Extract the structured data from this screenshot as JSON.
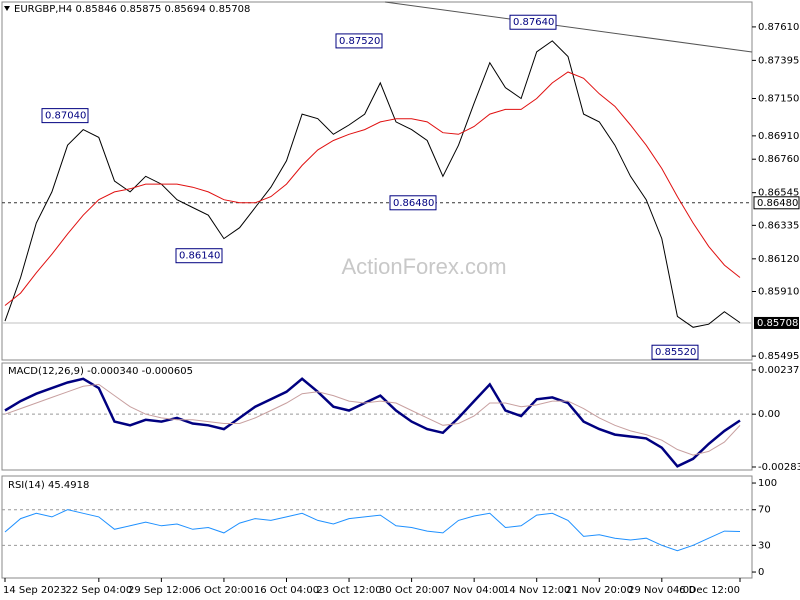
{
  "chart_data": [
    {
      "type": "line",
      "title": "EURGBP,H4  0.85846 0.85875 0.85694 0.85708",
      "watermark": "ActionForex.com",
      "categories": [
        "14 Sep 2023",
        null,
        null,
        null,
        null,
        null,
        "22 Sep 04:00",
        null,
        null,
        null,
        "29 Sep 12:00",
        null,
        null,
        null,
        "6 Oct 20:00",
        null,
        null,
        null,
        "16 Oct 04:00",
        null,
        null,
        null,
        "23 Oct 12:00",
        null,
        null,
        null,
        "30 Oct 20:00",
        null,
        null,
        null,
        "7 Nov 04:00",
        null,
        null,
        null,
        "14 Nov 12:00",
        null,
        null,
        null,
        "21 Nov 20:00",
        null,
        null,
        null,
        "29 Nov 04:00",
        null,
        null,
        null,
        null,
        "6 Dec 12:00"
      ],
      "series": [
        {
          "color": "#000000",
          "values": [
            0.8572,
            0.86,
            0.8635,
            0.8655,
            0.8685,
            0.8695,
            0.869,
            0.8662,
            0.8655,
            0.8665,
            0.866,
            0.865,
            0.8645,
            0.864,
            0.8625,
            0.8632,
            0.8645,
            0.8658,
            0.8675,
            0.8705,
            0.8702,
            0.8692,
            0.8698,
            0.8705,
            0.8725,
            0.87,
            0.8695,
            0.8688,
            0.8665,
            0.8685,
            0.8712,
            0.8738,
            0.8722,
            0.8715,
            0.8745,
            0.8752,
            0.8742,
            0.8705,
            0.87,
            0.8685,
            0.8665,
            0.865,
            0.8625,
            0.8575,
            0.8568,
            0.857,
            0.8578,
            0.8571
          ]
        },
        {
          "color": "#e01010",
          "values": [
            0.8582,
            0.859,
            0.8603,
            0.8615,
            0.8628,
            0.864,
            0.865,
            0.8655,
            0.8657,
            0.866,
            0.866,
            0.866,
            0.8658,
            0.8655,
            0.865,
            0.8648,
            0.8648,
            0.8652,
            0.866,
            0.8672,
            0.8682,
            0.8688,
            0.8692,
            0.8695,
            0.87,
            0.8702,
            0.8702,
            0.87,
            0.8693,
            0.8692,
            0.8697,
            0.8705,
            0.8708,
            0.8708,
            0.8715,
            0.8725,
            0.8732,
            0.8728,
            0.8718,
            0.871,
            0.8698,
            0.8685,
            0.867,
            0.8652,
            0.8635,
            0.862,
            0.8608,
            0.86
          ]
        }
      ],
      "ylim": [
        0.8547,
        0.8777
      ],
      "yticks": [
        {
          "value": 0.8761,
          "label": "0.87610"
        },
        0.87395,
        {
          "value": 0.8715,
          "label": "0.87150"
        },
        {
          "value": 0.8691,
          "label": "0.86910"
        },
        {
          "value": 0.8676,
          "label": "0.86760"
        },
        0.86545,
        0.86335,
        {
          "value": 0.8612,
          "label": "0.86120"
        },
        {
          "value": 0.8591,
          "label": "0.85910"
        },
        0.85495
      ],
      "levels": [
        {
          "value": 0.8648,
          "label": "0.86480"
        }
      ],
      "current": {
        "value": 0.85708,
        "label": "0.85708"
      },
      "annotations": [
        {
          "value": 0.8704,
          "label": "0.87040"
        },
        {
          "value": 0.8752,
          "label": "0.87520"
        },
        {
          "value": 0.8764,
          "label": "0.87640"
        },
        {
          "value": 0.8648,
          "label": "0.86480"
        },
        {
          "value": 0.8614,
          "label": "0.86140"
        },
        {
          "value": 0.8552,
          "label": "0.85520"
        }
      ]
    },
    {
      "type": "line",
      "title": "MACD(12,26,9) -0.000340 -0.000605",
      "series": [
        {
          "color": "#000080",
          "values": [
            0.0002,
            0.0007,
            0.0011,
            0.0014,
            0.0017,
            0.0019,
            0.0014,
            -0.0004,
            -0.0006,
            -0.0003,
            -0.0004,
            -0.0002,
            -0.0005,
            -0.0006,
            -0.0008,
            -0.0002,
            0.0004,
            0.0008,
            0.0012,
            0.0019,
            0.0012,
            0.0004,
            0.0002,
            0.0006,
            0.001,
            0.0002,
            -0.0004,
            -0.0008,
            -0.001,
            -0.0002,
            0.0007,
            0.0016,
            0.0002,
            -0.0001,
            0.0008,
            0.0009,
            0.0006,
            -0.0004,
            -0.0008,
            -0.0011,
            -0.0012,
            -0.0013,
            -0.0018,
            -0.0028,
            -0.0024,
            -0.0016,
            -0.0009,
            -0.00034
          ]
        },
        {
          "color": "#c8a0a0",
          "values": [
            0,
            0.0003,
            0.0006,
            0.0009,
            0.0012,
            0.0015,
            0.0016,
            0.001,
            0.0004,
            0,
            -0.0002,
            -0.0003,
            -0.0003,
            -0.0004,
            -0.0005,
            -0.0005,
            -0.0002,
            0.0002,
            0.0006,
            0.0011,
            0.0012,
            0.001,
            0.0007,
            0.0006,
            0.0007,
            0.0006,
            0.0002,
            -0.0002,
            -0.0006,
            -0.0005,
            -0.0001,
            0.0006,
            0.0006,
            0.0004,
            0.0005,
            0.0007,
            0.0007,
            0.0003,
            -0.0002,
            -0.0006,
            -0.0009,
            -0.0011,
            -0.0014,
            -0.0019,
            -0.0022,
            -0.002,
            -0.0015,
            -0.000605
          ]
        }
      ],
      "ylim": [
        -0.003,
        0.00275
      ],
      "yticks": [
        0.002375,
        {
          "value": 0,
          "label": "0.00"
        },
        -0.002838
      ],
      "levels": [
        0
      ]
    },
    {
      "type": "line",
      "title": "RSI(14) 45.4918",
      "series": [
        {
          "color": "#1e90ff",
          "values": [
            45,
            60,
            66,
            62,
            70,
            66,
            62,
            48,
            52,
            56,
            52,
            54,
            48,
            50,
            44,
            55,
            60,
            58,
            62,
            66,
            58,
            54,
            60,
            62,
            64,
            52,
            50,
            46,
            44,
            58,
            63,
            66,
            50,
            52,
            64,
            66,
            58,
            40,
            42,
            38,
            36,
            38,
            30,
            24,
            30,
            38,
            46,
            45.4918
          ]
        }
      ],
      "ylim": [
        -6.7,
        107.9
      ],
      "yticks": [
        100,
        70,
        30,
        0
      ],
      "levels": [
        70,
        30
      ]
    }
  ]
}
